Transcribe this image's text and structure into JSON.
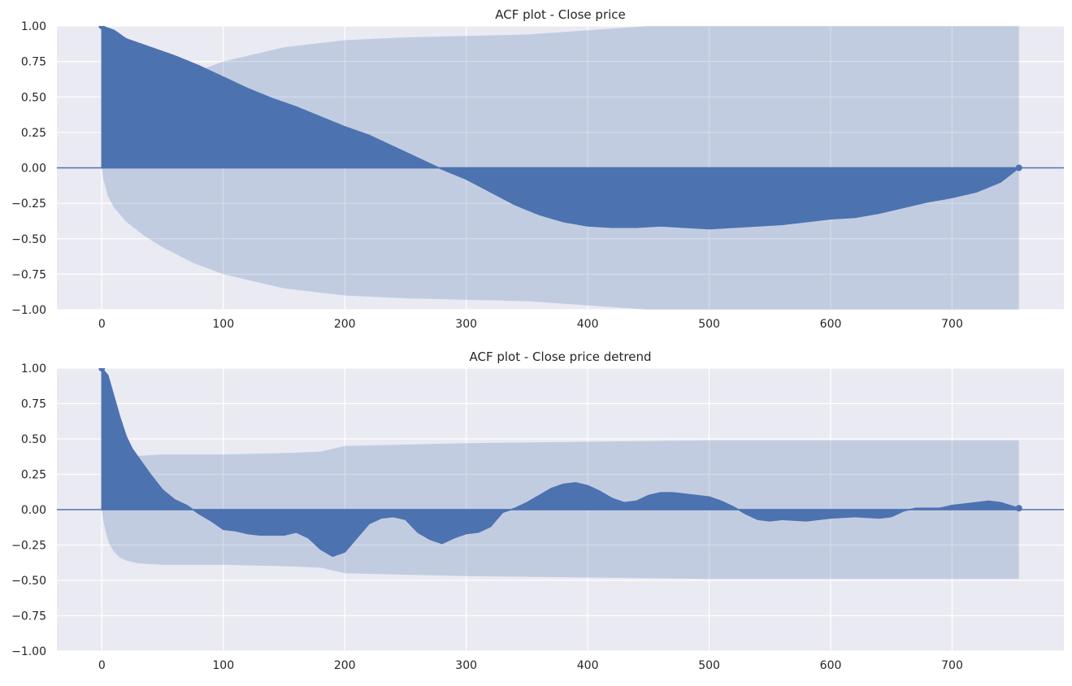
{
  "colors": {
    "background": "#eaeaf2",
    "grid": "#ffffff",
    "acf": "#4c72b0",
    "confidence_band": "#c2cae3"
  },
  "chart_data": [
    {
      "type": "bar",
      "subtype": "acf-stem",
      "title": "ACF plot - Close price",
      "xlabel": "",
      "ylabel": "",
      "xlim": [
        -37,
        792
      ],
      "ylim": [
        -1,
        1
      ],
      "xticks": [
        0,
        100,
        200,
        300,
        400,
        500,
        600,
        700
      ],
      "yticks": [
        1.0,
        0.75,
        0.5,
        0.25,
        0.0,
        -0.25,
        -0.5,
        -0.75,
        -1.0
      ],
      "ytick_labels": [
        "1.00",
        "0.75",
        "0.50",
        "0.25",
        "0.00",
        "−0.25",
        "−0.50",
        "−0.75",
        "−1.00"
      ],
      "grid": true,
      "max_lag": 755,
      "acf": {
        "lags": [
          0,
          10,
          20,
          40,
          60,
          80,
          100,
          120,
          140,
          160,
          180,
          200,
          220,
          240,
          260,
          280,
          300,
          320,
          340,
          360,
          380,
          400,
          420,
          440,
          460,
          480,
          500,
          520,
          540,
          560,
          580,
          600,
          620,
          640,
          660,
          680,
          700,
          720,
          740,
          755
        ],
        "values": [
          1.0,
          0.97,
          0.91,
          0.85,
          0.79,
          0.72,
          0.64,
          0.56,
          0.49,
          0.43,
          0.36,
          0.29,
          0.23,
          0.15,
          0.07,
          -0.01,
          -0.08,
          -0.17,
          -0.26,
          -0.33,
          -0.38,
          -0.41,
          -0.42,
          -0.42,
          -0.41,
          -0.42,
          -0.43,
          -0.42,
          -0.41,
          -0.4,
          -0.38,
          -0.36,
          -0.35,
          -0.32,
          -0.28,
          -0.24,
          -0.21,
          -0.17,
          -0.1,
          0.0
        ]
      },
      "confidence_interval": {
        "lags": [
          0,
          1,
          5,
          10,
          20,
          35,
          50,
          75,
          100,
          150,
          200,
          250,
          300,
          350,
          400,
          450,
          500,
          600,
          700,
          755
        ],
        "upper": [
          0,
          0.07,
          0.2,
          0.28,
          0.38,
          0.48,
          0.56,
          0.67,
          0.75,
          0.85,
          0.9,
          0.92,
          0.93,
          0.94,
          0.97,
          1.0,
          1.02,
          1.03,
          1.03,
          1.03
        ]
      }
    },
    {
      "type": "bar",
      "subtype": "acf-stem",
      "title": "ACF plot - Close price detrend",
      "xlabel": "",
      "ylabel": "",
      "xlim": [
        -37,
        792
      ],
      "ylim": [
        -1,
        1
      ],
      "xticks": [
        0,
        100,
        200,
        300,
        400,
        500,
        600,
        700
      ],
      "yticks": [
        1.0,
        0.75,
        0.5,
        0.25,
        0.0,
        -0.25,
        -0.5,
        -0.75,
        -1.0
      ],
      "ytick_labels": [
        "1.00",
        "0.75",
        "0.50",
        "0.25",
        "0.00",
        "−0.25",
        "−0.50",
        "−0.75",
        "−1.00"
      ],
      "grid": true,
      "max_lag": 755,
      "acf": {
        "lags": [
          0,
          5,
          10,
          15,
          20,
          25,
          30,
          40,
          50,
          60,
          70,
          80,
          90,
          100,
          110,
          120,
          130,
          140,
          150,
          160,
          170,
          180,
          190,
          200,
          210,
          220,
          230,
          240,
          250,
          260,
          270,
          280,
          290,
          300,
          310,
          320,
          330,
          340,
          350,
          360,
          370,
          380,
          390,
          400,
          410,
          420,
          430,
          440,
          450,
          460,
          470,
          480,
          490,
          500,
          510,
          520,
          530,
          540,
          550,
          560,
          580,
          600,
          620,
          640,
          650,
          660,
          670,
          690,
          700,
          720,
          730,
          740,
          755
        ],
        "values": [
          1.0,
          0.95,
          0.8,
          0.65,
          0.52,
          0.43,
          0.37,
          0.25,
          0.14,
          0.07,
          0.03,
          -0.03,
          -0.08,
          -0.14,
          -0.15,
          -0.17,
          -0.18,
          -0.18,
          -0.18,
          -0.16,
          -0.2,
          -0.28,
          -0.33,
          -0.3,
          -0.2,
          -0.1,
          -0.06,
          -0.05,
          -0.07,
          -0.16,
          -0.21,
          -0.24,
          -0.2,
          -0.17,
          -0.16,
          -0.12,
          -0.02,
          0.01,
          0.05,
          0.1,
          0.15,
          0.18,
          0.19,
          0.17,
          0.13,
          0.08,
          0.05,
          0.06,
          0.1,
          0.12,
          0.12,
          0.11,
          0.1,
          0.09,
          0.06,
          0.02,
          -0.03,
          -0.07,
          -0.08,
          -0.07,
          -0.08,
          -0.06,
          -0.05,
          -0.06,
          -0.05,
          -0.01,
          0.01,
          0.01,
          0.03,
          0.05,
          0.06,
          0.05,
          0.01
        ]
      },
      "confidence_interval": {
        "lags": [
          0,
          1,
          3,
          6,
          10,
          15,
          20,
          30,
          50,
          100,
          150,
          180,
          200,
          250,
          300,
          400,
          500,
          755
        ],
        "upper": [
          0,
          0.07,
          0.15,
          0.24,
          0.3,
          0.34,
          0.36,
          0.38,
          0.39,
          0.39,
          0.4,
          0.41,
          0.45,
          0.46,
          0.47,
          0.48,
          0.49,
          0.49
        ]
      }
    }
  ]
}
